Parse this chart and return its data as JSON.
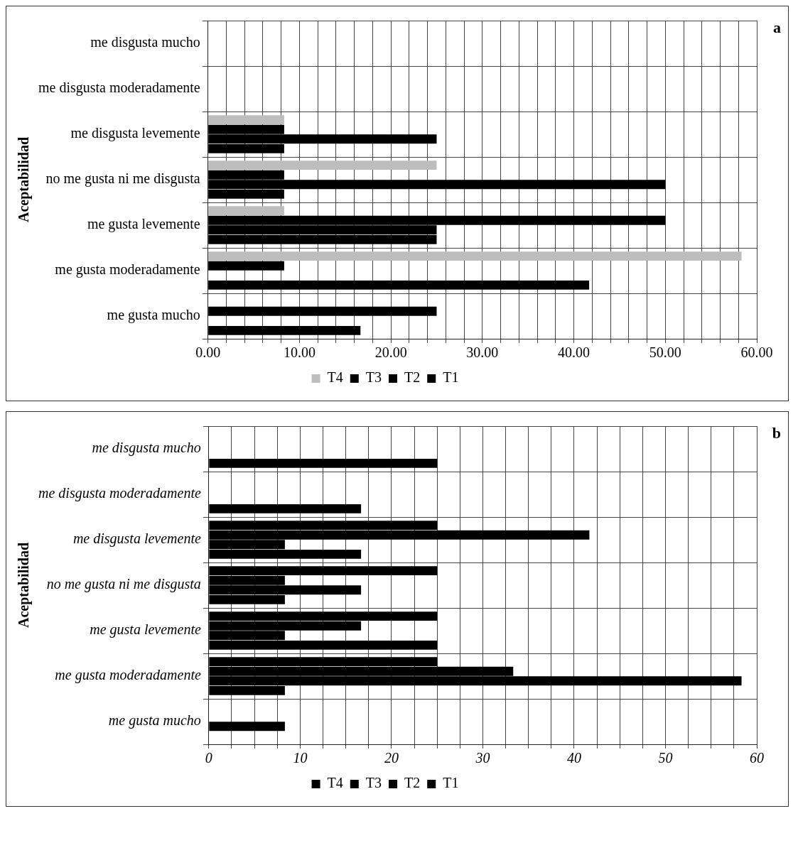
{
  "chart_data": [
    {
      "type": "bar",
      "orientation": "horizontal",
      "ylabel": "Aceptabilidad",
      "annotations": [
        "a"
      ],
      "categories": [
        "me disgusta mucho",
        "me disgusta moderadamente",
        "me disgusta levemente",
        "no me gusta ni me disgusta",
        "me gusta levemente",
        "me gusta moderadamente",
        "me gusta mucho"
      ],
      "series": [
        {
          "name": "T4",
          "color": "#bdbdbd",
          "values": [
            0,
            0,
            8.33,
            25,
            8.33,
            58.33,
            0
          ]
        },
        {
          "name": "T3",
          "color": "#000000",
          "values": [
            0,
            0,
            8.33,
            8.33,
            50,
            8.33,
            25
          ]
        },
        {
          "name": "T2",
          "color": "#000000",
          "values": [
            0,
            0,
            25,
            50,
            25,
            0,
            0
          ]
        },
        {
          "name": "T1",
          "color": "#000000",
          "values": [
            0,
            0,
            8.33,
            8.33,
            25,
            41.67,
            16.67
          ]
        }
      ],
      "xlim": [
        0,
        60
      ],
      "xticks": [
        {
          "value": 0,
          "label": "0.00"
        },
        {
          "value": 2,
          "label": null
        },
        {
          "value": 4,
          "label": null
        },
        {
          "value": 6,
          "label": null
        },
        {
          "value": 8,
          "label": null
        },
        {
          "value": 10,
          "label": "10.00"
        },
        {
          "value": 12,
          "label": null
        },
        {
          "value": 14,
          "label": null
        },
        {
          "value": 16,
          "label": null
        },
        {
          "value": 18,
          "label": null
        },
        {
          "value": 20,
          "label": "20.00"
        },
        {
          "value": 22,
          "label": null
        },
        {
          "value": 24,
          "label": null
        },
        {
          "value": 26,
          "label": null
        },
        {
          "value": 28,
          "label": null
        },
        {
          "value": 30,
          "label": "30.00"
        },
        {
          "value": 32,
          "label": null
        },
        {
          "value": 34,
          "label": null
        },
        {
          "value": 36,
          "label": null
        },
        {
          "value": 38,
          "label": null
        },
        {
          "value": 40,
          "label": "40.00"
        },
        {
          "value": 42,
          "label": null
        },
        {
          "value": 44,
          "label": null
        },
        {
          "value": 46,
          "label": null
        },
        {
          "value": 48,
          "label": null
        },
        {
          "value": 50,
          "label": "50.00"
        },
        {
          "value": 52,
          "label": null
        },
        {
          "value": 54,
          "label": null
        },
        {
          "value": 56,
          "label": null
        },
        {
          "value": 58,
          "label": null
        },
        {
          "value": 60,
          "label": "60.00"
        }
      ],
      "grid": true,
      "legend": "bottom"
    },
    {
      "type": "bar",
      "orientation": "horizontal",
      "ylabel": "Aceptabilidad",
      "annotations": [
        "b"
      ],
      "categories": [
        "me disgusta mucho",
        "me disgusta moderadamente",
        "me disgusta levemente",
        "no me gusta ni me disgusta",
        "me gusta levemente",
        "me gusta moderadamente",
        "me gusta mucho"
      ],
      "series": [
        {
          "name": "T4",
          "color": "#000000",
          "values": [
            0,
            0,
            25,
            25,
            25,
            25,
            0
          ]
        },
        {
          "name": "T3",
          "color": "#000000",
          "values": [
            0,
            0,
            41.67,
            8.33,
            16.67,
            33.33,
            0
          ]
        },
        {
          "name": "T2",
          "color": "#000000",
          "values": [
            0,
            0,
            8.33,
            16.67,
            8.33,
            58.33,
            8.33
          ]
        },
        {
          "name": "T1",
          "color": "#000000",
          "values": [
            25,
            16.67,
            16.67,
            8.33,
            25,
            8.33,
            0
          ]
        }
      ],
      "xlim": [
        0,
        60
      ],
      "xticks": [
        0,
        {
          "value": 2.5,
          "label": null
        },
        {
          "value": 5,
          "label": null
        },
        {
          "value": 7.5,
          "label": null
        },
        10,
        {
          "value": 12.5,
          "label": null
        },
        {
          "value": 15,
          "label": null
        },
        {
          "value": 17.5,
          "label": null
        },
        20,
        {
          "value": 22.5,
          "label": null
        },
        {
          "value": 25,
          "label": null
        },
        {
          "value": 27.5,
          "label": null
        },
        30,
        {
          "value": 32.5,
          "label": null
        },
        {
          "value": 35,
          "label": null
        },
        {
          "value": 37.5,
          "label": null
        },
        40,
        {
          "value": 42.5,
          "label": null
        },
        {
          "value": 45,
          "label": null
        },
        {
          "value": 47.5,
          "label": null
        },
        50,
        {
          "value": 52.5,
          "label": null
        },
        {
          "value": 55,
          "label": null
        },
        {
          "value": 57.5,
          "label": null
        },
        60
      ],
      "grid": true,
      "legend": "bottom"
    }
  ]
}
